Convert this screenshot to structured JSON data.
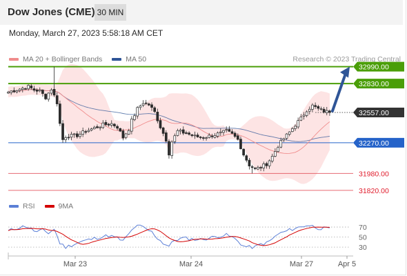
{
  "header": {
    "symbol": "Dow Jones (CME)",
    "timeframe": "30 MIN",
    "datetime": "Monday, March 27, 2023 5:58:18 AM CET"
  },
  "legend": {
    "ma20_label": "MA 20 + Bollinger Bands",
    "ma20_color": "#f08c8c",
    "ma50_label": "MA 50",
    "ma50_color": "#2f5597",
    "credit": "Research © 2023 Trading Central"
  },
  "rsi_legend": {
    "rsi_label": "RSI",
    "rsi_color": "#5b7fd6",
    "ma_label": "9MA",
    "ma_color": "#d40000"
  },
  "chart_data": {
    "type": "candlestick",
    "y_range": [
      31780,
      33020
    ],
    "current_price": {
      "value": 32557,
      "label": "32557.00"
    },
    "levels": [
      {
        "value": 32990,
        "label": "32990.00",
        "kind": "resistance",
        "color": "#4a9e08"
      },
      {
        "value": 32830,
        "label": "32830.00",
        "kind": "resistance",
        "color": "#4a9e08"
      },
      {
        "value": 32270,
        "label": "32270.00",
        "kind": "pivot",
        "color": "#2563c9"
      },
      {
        "value": 31980,
        "label": "31980.00",
        "kind": "support",
        "color": "#e0454f"
      },
      {
        "value": 31820,
        "label": "31820.00",
        "kind": "support",
        "color": "#e0454f"
      }
    ],
    "x_labels": [
      "Mar 23",
      "Mar 24",
      "Mar 27",
      "Apr 5"
    ],
    "price_anchors": [
      [
        0,
        32750
      ],
      [
        4,
        32780
      ],
      [
        7,
        32800
      ],
      [
        9,
        32770
      ],
      [
        11,
        32760
      ],
      [
        13,
        32700
      ],
      [
        15,
        32780
      ],
      [
        17,
        32650
      ],
      [
        18,
        32450
      ],
      [
        19,
        32300
      ],
      [
        20,
        32330
      ],
      [
        24,
        32340
      ],
      [
        27,
        32380
      ],
      [
        30,
        32410
      ],
      [
        33,
        32440
      ],
      [
        36,
        32450
      ],
      [
        38,
        32420
      ],
      [
        40,
        32320
      ],
      [
        42,
        32400
      ],
      [
        43,
        32480
      ],
      [
        45,
        32590
      ],
      [
        47,
        32650
      ],
      [
        49,
        32630
      ],
      [
        51,
        32560
      ],
      [
        53,
        32420
      ],
      [
        55,
        32300
      ],
      [
        56,
        32170
      ],
      [
        57,
        32280
      ],
      [
        59,
        32380
      ],
      [
        62,
        32360
      ],
      [
        65,
        32330
      ],
      [
        68,
        32320
      ],
      [
        71,
        32340
      ],
      [
        74,
        32360
      ],
      [
        76,
        32380
      ],
      [
        78,
        32350
      ],
      [
        80,
        32300
      ],
      [
        82,
        32160
      ],
      [
        84,
        32060
      ],
      [
        86,
        32020
      ],
      [
        88,
        32040
      ],
      [
        90,
        32070
      ],
      [
        92,
        32140
      ],
      [
        94,
        32240
      ],
      [
        96,
        32310
      ],
      [
        98,
        32370
      ],
      [
        100,
        32440
      ],
      [
        102,
        32500
      ],
      [
        104,
        32580
      ],
      [
        106,
        32620
      ],
      [
        108,
        32590
      ],
      [
        110,
        32570
      ],
      [
        112,
        32557
      ]
    ],
    "rsi": {
      "guides": [
        70,
        50,
        30
      ],
      "guide_labels": [
        "70",
        "50",
        "30"
      ],
      "anchors": [
        [
          0,
          62
        ],
        [
          3,
          68
        ],
        [
          6,
          72
        ],
        [
          8,
          66
        ],
        [
          10,
          60
        ],
        [
          12,
          64
        ],
        [
          14,
          58
        ],
        [
          16,
          66
        ],
        [
          18,
          38
        ],
        [
          20,
          30
        ],
        [
          23,
          36
        ],
        [
          26,
          42
        ],
        [
          29,
          46
        ],
        [
          32,
          50
        ],
        [
          35,
          53
        ],
        [
          38,
          48
        ],
        [
          40,
          42
        ],
        [
          42,
          56
        ],
        [
          44,
          70
        ],
        [
          46,
          72
        ],
        [
          48,
          66
        ],
        [
          50,
          60
        ],
        [
          52,
          48
        ],
        [
          54,
          38
        ],
        [
          56,
          32
        ],
        [
          58,
          44
        ],
        [
          61,
          48
        ],
        [
          64,
          46
        ],
        [
          67,
          45
        ],
        [
          70,
          48
        ],
        [
          73,
          52
        ],
        [
          76,
          54
        ],
        [
          78,
          50
        ],
        [
          80,
          42
        ],
        [
          82,
          32
        ],
        [
          84,
          30
        ],
        [
          86,
          30
        ],
        [
          88,
          36
        ],
        [
          90,
          38
        ],
        [
          92,
          46
        ],
        [
          94,
          56
        ],
        [
          96,
          60
        ],
        [
          98,
          64
        ],
        [
          100,
          68
        ],
        [
          102,
          70
        ],
        [
          104,
          74
        ],
        [
          106,
          72
        ],
        [
          108,
          68
        ],
        [
          110,
          67
        ],
        [
          112,
          66
        ]
      ]
    }
  }
}
